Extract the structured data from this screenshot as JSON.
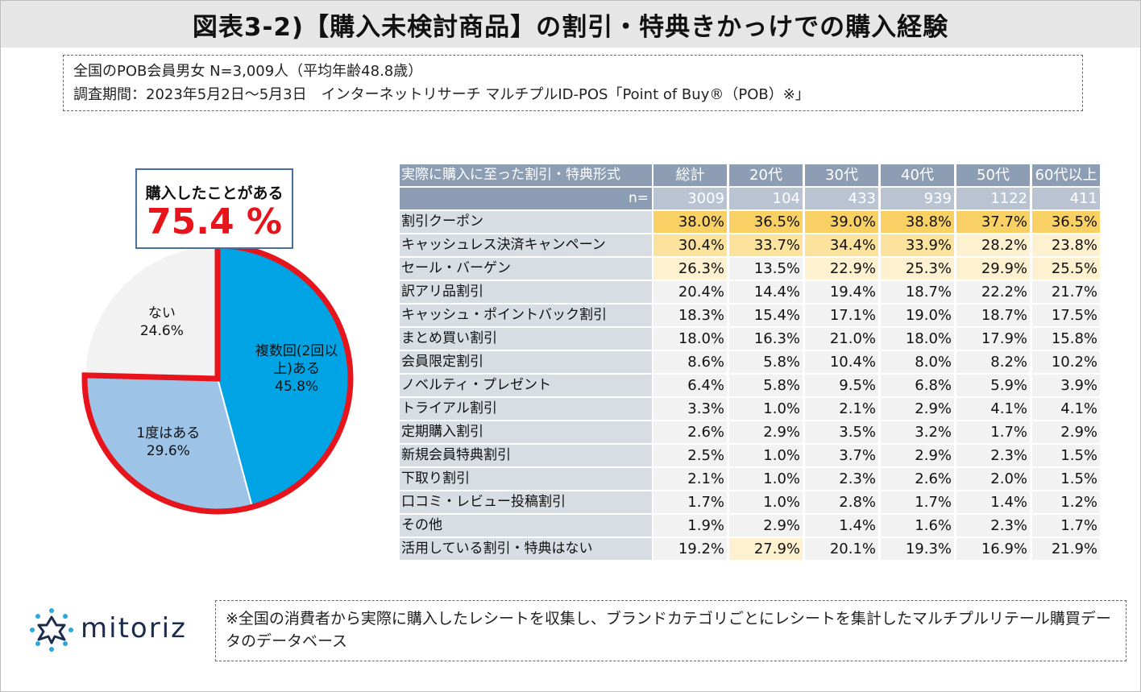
{
  "title": "図表3-2)【購入未検討商品】の割引・特典きかっけでの購入経験",
  "info": {
    "line1": "全国のPOB会員男女 N=3,009人（平均年齢48.8歳）",
    "line2": "調査期間：2023年5月2日～5月3日　インターネットリサーチ マルチプルID-POS「Point of Buy®（POB）※」"
  },
  "callout": {
    "title": "購入したことがある",
    "value": "75.4 %"
  },
  "colors": {
    "pie_multiple": "#00a4e4",
    "pie_once": "#9dc3e6",
    "pie_none": "#f2f2f2",
    "highlight_outline": "#e8141b",
    "header_bg": "#8d9db3",
    "n_bg": "#b9c3d2",
    "category_bg": "#d8dce3"
  },
  "chart_data": [
    {
      "type": "pie",
      "title": "",
      "slices": [
        {
          "label": "複数回(2回以上)ある",
          "label_line1": "複数回(2回以",
          "label_line2": "上)ある",
          "value": 45.8,
          "display": "45.8%"
        },
        {
          "label": "1度はある",
          "label_line1": "1度はある",
          "value": 29.6,
          "display": "29.6%"
        },
        {
          "label": "ない",
          "label_line1": "ない",
          "value": 24.6,
          "display": "24.6%"
        }
      ],
      "highlight_total": 75.4
    },
    {
      "type": "table",
      "header_label": "実際に購入に至った割引・特典形式",
      "n_label": "n=",
      "columns": [
        "総計",
        "20代",
        "30代",
        "40代",
        "50代",
        "60代以上"
      ],
      "n_values": [
        "3009",
        "104",
        "433",
        "939",
        "1122",
        "411"
      ],
      "rows": [
        {
          "label": "割引クーポン",
          "values": [
            "38.0%",
            "36.5%",
            "39.0%",
            "38.8%",
            "37.7%",
            "36.5%"
          ]
        },
        {
          "label": "キャッシュレス決済キャンペーン",
          "values": [
            "30.4%",
            "33.7%",
            "34.4%",
            "33.9%",
            "28.2%",
            "23.8%"
          ]
        },
        {
          "label": "セール・バーゲン",
          "values": [
            "26.3%",
            "13.5%",
            "22.9%",
            "25.3%",
            "29.9%",
            "25.5%"
          ]
        },
        {
          "label": "訳アリ品割引",
          "values": [
            "20.4%",
            "14.4%",
            "19.4%",
            "18.7%",
            "22.2%",
            "21.7%"
          ]
        },
        {
          "label": "キャッシュ・ポイントバック割引",
          "values": [
            "18.3%",
            "15.4%",
            "17.1%",
            "19.0%",
            "18.7%",
            "17.5%"
          ]
        },
        {
          "label": "まとめ買い割引",
          "values": [
            "18.0%",
            "16.3%",
            "21.0%",
            "18.0%",
            "17.9%",
            "15.8%"
          ]
        },
        {
          "label": "会員限定割引",
          "values": [
            "8.6%",
            "5.8%",
            "10.4%",
            "8.0%",
            "8.2%",
            "10.2%"
          ]
        },
        {
          "label": "ノベルティ・プレゼント",
          "values": [
            "6.4%",
            "5.8%",
            "9.5%",
            "6.8%",
            "5.9%",
            "3.9%"
          ]
        },
        {
          "label": "トライアル割引",
          "values": [
            "3.3%",
            "1.0%",
            "2.1%",
            "2.9%",
            "4.1%",
            "4.1%"
          ]
        },
        {
          "label": "定期購入割引",
          "values": [
            "2.6%",
            "2.9%",
            "3.5%",
            "3.2%",
            "1.7%",
            "2.9%"
          ]
        },
        {
          "label": "新規会員特典割引",
          "values": [
            "2.5%",
            "1.0%",
            "3.7%",
            "2.9%",
            "2.3%",
            "1.5%"
          ]
        },
        {
          "label": "下取り割引",
          "values": [
            "2.1%",
            "1.0%",
            "2.3%",
            "2.6%",
            "2.0%",
            "1.5%"
          ]
        },
        {
          "label": "口コミ・レビュー投稿割引",
          "values": [
            "1.7%",
            "1.0%",
            "2.8%",
            "1.7%",
            "1.4%",
            "1.2%"
          ]
        },
        {
          "label": "その他",
          "values": [
            "1.9%",
            "2.9%",
            "1.4%",
            "1.6%",
            "2.3%",
            "1.7%"
          ]
        },
        {
          "label": "活用している割引・特典はない",
          "values": [
            "19.2%",
            "27.9%",
            "20.1%",
            "19.3%",
            "16.9%",
            "21.9%"
          ]
        }
      ],
      "heatmap_note": "cells shaded by value: yellow-orange for highest values in the top rows",
      "heat_colors": {
        "strong": "#f9d063",
        "medium": "#fbe39e",
        "light": "#fdf1cf",
        "none": "#f2f2f2"
      }
    }
  ],
  "footer": {
    "logo_text": "mitoriz",
    "note": "※全国の消費者から実際に購入したレシートを収集し、ブランドカテゴリごとにレシートを集計したマルチプルリテール購買データのデータベース"
  }
}
